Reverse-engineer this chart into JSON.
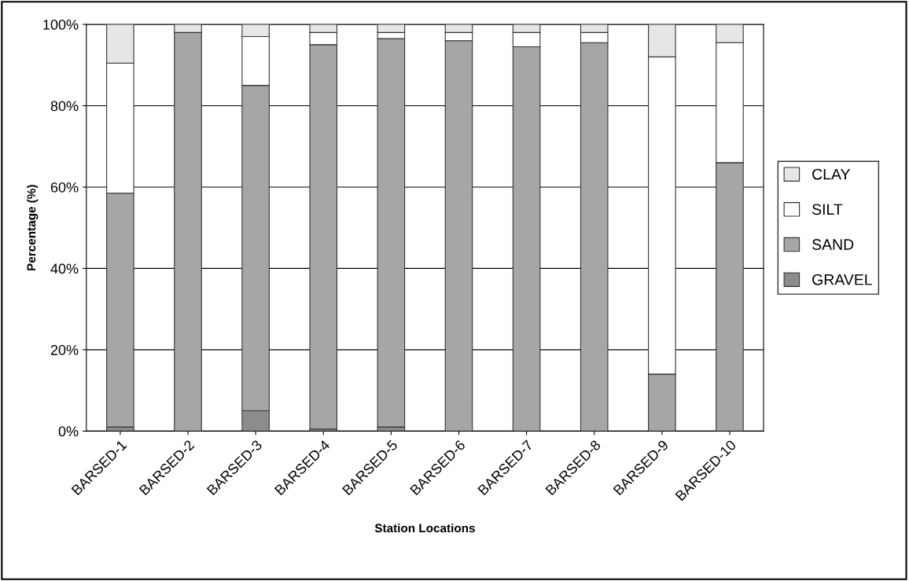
{
  "chart_data": {
    "type": "bar",
    "stacked": true,
    "xlabel": "Station Locations",
    "ylabel": "Percentage (%)",
    "categories": [
      "BARSED-1",
      "BARSED-2",
      "BARSED-3",
      "BARSED-4",
      "BARSED-5",
      "BARSED-6",
      "BARSED-7",
      "BARSED-8",
      "BARSED-9",
      "BARSED-10"
    ],
    "series": [
      {
        "name": "GRAVEL",
        "color": "#8c8c8c",
        "values": [
          1,
          0,
          5,
          0.5,
          1,
          0,
          0,
          0,
          0,
          0
        ]
      },
      {
        "name": "SAND",
        "color": "#a6a6a6",
        "values": [
          57.5,
          98,
          80,
          94.5,
          95.5,
          96,
          94.5,
          95.5,
          14,
          66
        ]
      },
      {
        "name": "SILT",
        "color": "#ffffff",
        "values": [
          32,
          0,
          12,
          3,
          1.5,
          2,
          3.5,
          2.5,
          78,
          29.5
        ]
      },
      {
        "name": "CLAY",
        "color": "#e6e6e6",
        "values": [
          9.5,
          2,
          3,
          2,
          2,
          2,
          2,
          2,
          8,
          4.5
        ]
      }
    ],
    "ylim": [
      0,
      100
    ],
    "yticks": [
      {
        "value": 0,
        "label": "0%"
      },
      {
        "value": 20,
        "label": "20%"
      },
      {
        "value": 40,
        "label": "40%"
      },
      {
        "value": 60,
        "label": "60%"
      },
      {
        "value": 80,
        "label": "80%"
      },
      {
        "value": 100,
        "label": "100%"
      }
    ],
    "grid": "y",
    "legend": "right"
  }
}
